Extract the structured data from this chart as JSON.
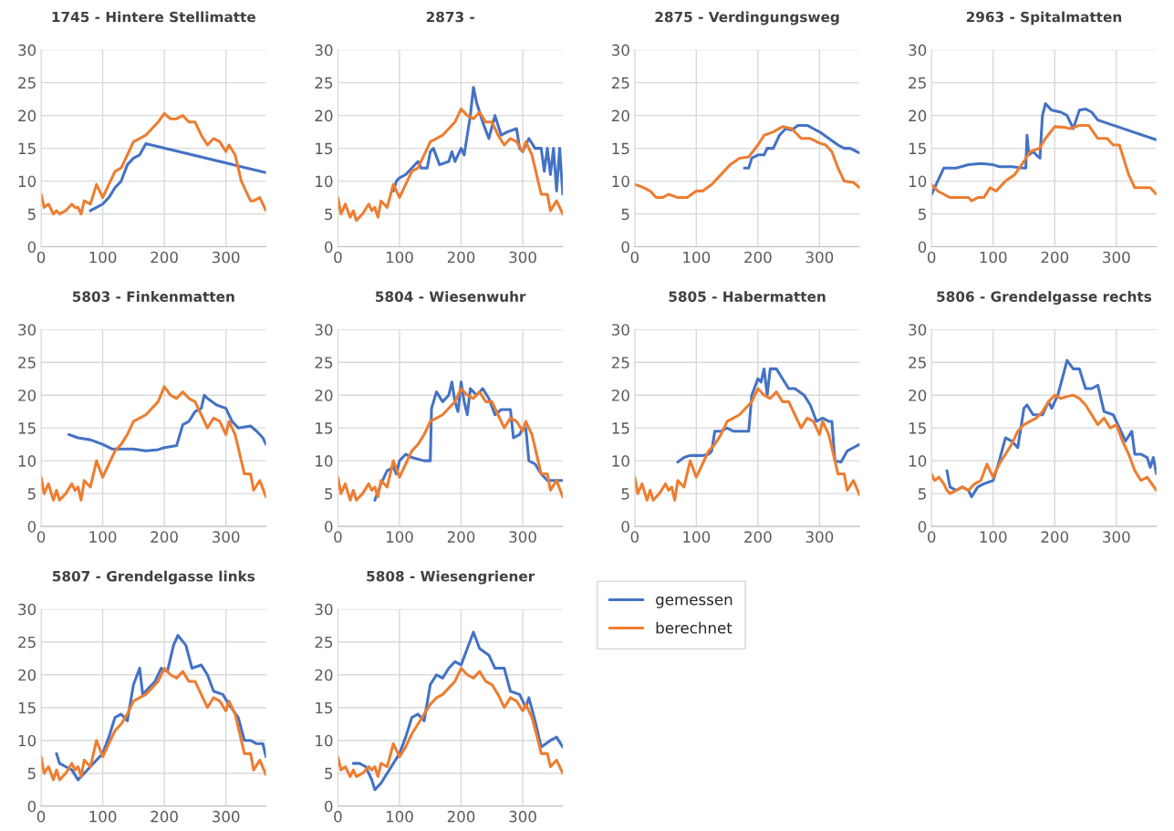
{
  "chart_data": [
    {
      "type": "line",
      "title": "1745 - Hintere Stellimatte",
      "xlim": [
        0,
        365
      ],
      "ylim": [
        0,
        30
      ],
      "xticks": [
        0,
        100,
        200,
        300
      ],
      "yticks": [
        0,
        5,
        10,
        15,
        20,
        25,
        30
      ],
      "grid": true,
      "series": [
        {
          "color": "#4472c4",
          "x": [
            80,
            90,
            100,
            110,
            120,
            130,
            140,
            150,
            160,
            170,
            365
          ],
          "values": [
            5.5,
            6,
            6.5,
            7.5,
            9,
            10,
            12.5,
            13.5,
            14,
            15.7,
            11.3
          ]
        },
        {
          "color": "#ed7d31",
          "x": [
            0,
            5,
            12,
            20,
            25,
            30,
            40,
            50,
            55,
            60,
            65,
            70,
            80,
            90,
            100,
            110,
            120,
            130,
            140,
            150,
            160,
            170,
            180,
            190,
            200,
            210,
            220,
            230,
            240,
            250,
            260,
            270,
            280,
            290,
            300,
            305,
            315,
            325,
            330,
            340,
            345,
            355,
            365
          ],
          "values": [
            8,
            6,
            6.5,
            5,
            5.5,
            5,
            5.5,
            6.5,
            6,
            6,
            5,
            7,
            6.5,
            9.5,
            7.5,
            9.5,
            11.5,
            12,
            14,
            16,
            16.5,
            17,
            18,
            19,
            20.3,
            19.5,
            19.5,
            20,
            19,
            19,
            17,
            15.5,
            16.5,
            16,
            14.5,
            15.5,
            14,
            10,
            9,
            7,
            7,
            7.5,
            5.5
          ]
        }
      ]
    },
    {
      "type": "line",
      "title": "2873 -",
      "xlim": [
        0,
        365
      ],
      "ylim": [
        0,
        30
      ],
      "xticks": [
        0,
        100,
        200,
        300
      ],
      "yticks": [
        0,
        5,
        10,
        15,
        20,
        25,
        30
      ],
      "grid": true,
      "series": [
        {
          "color": "#4472c4",
          "x": [
            90,
            95,
            100,
            110,
            120,
            130,
            135,
            145,
            150,
            155,
            165,
            180,
            185,
            190,
            200,
            205,
            210,
            215,
            220,
            225,
            235,
            245,
            255,
            265,
            275,
            290,
            295,
            300,
            310,
            320,
            330,
            335,
            340,
            345,
            350,
            355,
            360,
            365
          ],
          "values": [
            8.5,
            10,
            10.5,
            11,
            12,
            13,
            12,
            12,
            14.5,
            15,
            12.5,
            13,
            14.5,
            13,
            15,
            14,
            17,
            20,
            24.3,
            22,
            19,
            16.5,
            20,
            17,
            17.5,
            18,
            15,
            14.5,
            16.5,
            15,
            15,
            11.5,
            15,
            11,
            15,
            8.5,
            15,
            8
          ]
        },
        {
          "color": "#ed7d31",
          "x": [
            0,
            5,
            12,
            20,
            25,
            30,
            40,
            50,
            55,
            60,
            65,
            70,
            80,
            90,
            100,
            110,
            120,
            130,
            140,
            150,
            160,
            170,
            180,
            190,
            200,
            210,
            220,
            230,
            240,
            250,
            260,
            270,
            280,
            290,
            300,
            305,
            315,
            325,
            330,
            340,
            345,
            355,
            365
          ],
          "values": [
            7.5,
            5,
            6.5,
            4.5,
            5.5,
            4,
            5,
            6.5,
            5.5,
            6,
            4.5,
            7,
            6,
            9.5,
            7.5,
            9.5,
            11.5,
            12,
            14,
            16,
            16.5,
            17,
            18,
            19,
            21,
            20,
            19.5,
            20.5,
            19,
            19,
            17,
            15.5,
            16.5,
            16,
            14.5,
            16,
            14,
            10,
            8,
            8,
            5.5,
            7,
            5
          ]
        }
      ]
    },
    {
      "type": "line",
      "title": "2875 - Verdingungsweg",
      "xlim": [
        0,
        365
      ],
      "ylim": [
        0,
        30
      ],
      "xticks": [
        0,
        100,
        200,
        300
      ],
      "yticks": [
        0,
        5,
        10,
        15,
        20,
        25,
        30
      ],
      "grid": true,
      "series": [
        {
          "color": "#4472c4",
          "x": [
            178,
            185,
            190,
            200,
            210,
            215,
            225,
            235,
            245,
            255,
            265,
            280,
            290,
            300,
            315,
            330,
            340,
            350,
            360,
            365
          ],
          "values": [
            12,
            12,
            13.5,
            14,
            14,
            15,
            15,
            17,
            18,
            17.8,
            18.5,
            18.5,
            18,
            17.5,
            16.5,
            15.5,
            15,
            15,
            14.5,
            14.3
          ]
        },
        {
          "color": "#ed7d31",
          "x": [
            0,
            15,
            25,
            35,
            45,
            55,
            70,
            85,
            100,
            110,
            125,
            140,
            155,
            170,
            185,
            200,
            210,
            225,
            240,
            255,
            270,
            285,
            300,
            310,
            320,
            330,
            340,
            355,
            365
          ],
          "values": [
            9.5,
            9,
            8.5,
            7.5,
            7.5,
            8,
            7.5,
            7.5,
            8.5,
            8.5,
            9.5,
            11,
            12.5,
            13.5,
            13.7,
            15.5,
            17,
            17.5,
            18.3,
            18,
            16.5,
            16.5,
            15.8,
            15.5,
            14.5,
            12,
            10,
            9.8,
            9
          ]
        }
      ]
    },
    {
      "type": "line",
      "title": "2963 - Spitalmatten",
      "xlim": [
        0,
        365
      ],
      "ylim": [
        0,
        30
      ],
      "xticks": [
        0,
        100,
        200,
        300
      ],
      "yticks": [
        0,
        5,
        10,
        15,
        20,
        25,
        30
      ],
      "grid": true,
      "series": [
        {
          "color": "#4472c4",
          "x": [
            0,
            10,
            20,
            40,
            60,
            80,
            100,
            110,
            130,
            150,
            153,
            155,
            158,
            165,
            170,
            176,
            180,
            185,
            195,
            210,
            220,
            230,
            240,
            250,
            260,
            270,
            365
          ],
          "values": [
            8,
            10,
            12,
            12,
            12.5,
            12.7,
            12.5,
            12.2,
            12.2,
            12,
            12,
            17,
            14,
            14.5,
            14,
            13.5,
            20,
            21.8,
            20.8,
            20.5,
            20,
            18,
            20.8,
            21,
            20.5,
            19.3,
            16.3
          ]
        },
        {
          "color": "#ed7d31",
          "x": [
            0,
            10,
            20,
            30,
            45,
            60,
            65,
            75,
            85,
            95,
            105,
            120,
            135,
            150,
            160,
            175,
            185,
            200,
            215,
            225,
            240,
            255,
            270,
            285,
            295,
            305,
            320,
            330,
            345,
            355,
            365
          ],
          "values": [
            9.5,
            8.5,
            8,
            7.5,
            7.5,
            7.5,
            7,
            7.5,
            7.5,
            9,
            8.5,
            10,
            11,
            13,
            14.5,
            15,
            16.5,
            18.3,
            18.2,
            18,
            18.5,
            18.5,
            16.5,
            16.5,
            15.5,
            15.5,
            11,
            9,
            9,
            9,
            8
          ]
        }
      ]
    },
    {
      "type": "line",
      "title": "5803 - Finkenmatten",
      "xlim": [
        0,
        365
      ],
      "ylim": [
        0,
        30
      ],
      "xticks": [
        0,
        100,
        200,
        300
      ],
      "yticks": [
        0,
        5,
        10,
        15,
        20,
        25,
        30
      ],
      "grid": true,
      "series": [
        {
          "color": "#4472c4",
          "x": [
            45,
            60,
            80,
            100,
            115,
            130,
            150,
            170,
            190,
            200,
            220,
            230,
            240,
            250,
            260,
            265,
            270,
            285,
            300,
            310,
            320,
            340,
            350,
            360,
            365
          ],
          "values": [
            14,
            13.5,
            13.2,
            12.5,
            11.8,
            11.8,
            11.8,
            11.5,
            11.7,
            12,
            12.3,
            15.5,
            16,
            17.5,
            18,
            20,
            19.5,
            18.5,
            18,
            16,
            15,
            15.3,
            14.5,
            13.5,
            12.5
          ]
        },
        {
          "color": "#ed7d31",
          "x": [
            0,
            5,
            12,
            20,
            25,
            30,
            40,
            50,
            55,
            60,
            65,
            70,
            80,
            90,
            100,
            110,
            120,
            130,
            140,
            150,
            160,
            170,
            180,
            190,
            200,
            210,
            220,
            230,
            240,
            250,
            260,
            270,
            280,
            290,
            300,
            305,
            315,
            325,
            330,
            340,
            345,
            355,
            365
          ],
          "values": [
            7.5,
            5,
            6.5,
            4,
            5.5,
            4,
            5,
            6.5,
            5.5,
            6,
            4,
            7,
            6,
            10,
            7.5,
            9.5,
            11.5,
            12.5,
            14,
            16,
            16.5,
            17,
            18,
            19,
            21.3,
            20,
            19.5,
            20.5,
            19.5,
            19,
            17,
            15,
            16.5,
            16,
            14,
            16,
            14,
            10,
            8,
            8,
            5.5,
            7,
            4.5
          ]
        }
      ]
    },
    {
      "type": "line",
      "title": "5804 - Wiesenwuhr",
      "xlim": [
        0,
        365
      ],
      "ylim": [
        0,
        30
      ],
      "xticks": [
        0,
        100,
        200,
        300
      ],
      "yticks": [
        0,
        5,
        10,
        15,
        20,
        25,
        30
      ],
      "grid": true,
      "series": [
        {
          "color": "#4472c4",
          "x": [
            60,
            70,
            80,
            90,
            95,
            100,
            110,
            120,
            140,
            150,
            152,
            160,
            170,
            180,
            185,
            190,
            195,
            200,
            205,
            210,
            215,
            225,
            235,
            245,
            255,
            265,
            280,
            285,
            295,
            300,
            305,
            310,
            320,
            330,
            340,
            350,
            365
          ],
          "values": [
            4,
            6.5,
            8.5,
            9,
            8,
            10,
            11,
            10.5,
            10,
            10,
            18,
            20.5,
            19,
            20,
            22,
            19,
            17.5,
            22,
            19,
            17,
            21,
            20,
            21,
            19.5,
            17,
            17.8,
            17.8,
            13.5,
            14,
            15,
            15,
            10,
            9.5,
            8,
            7,
            7,
            7
          ]
        },
        {
          "color": "#ed7d31",
          "x": [
            0,
            5,
            12,
            20,
            25,
            30,
            40,
            50,
            55,
            60,
            65,
            70,
            80,
            90,
            100,
            110,
            120,
            130,
            140,
            150,
            160,
            170,
            180,
            190,
            200,
            210,
            220,
            230,
            240,
            250,
            260,
            270,
            280,
            290,
            300,
            305,
            315,
            325,
            330,
            340,
            345,
            355,
            365
          ],
          "values": [
            7.5,
            5,
            6.5,
            4,
            5.5,
            4,
            5,
            6.5,
            5.5,
            6,
            4.5,
            7,
            6,
            10,
            7.5,
            9.5,
            11.5,
            12.5,
            14,
            16,
            16.5,
            17,
            18,
            19,
            21,
            20,
            19.5,
            20.5,
            19,
            19,
            17,
            15,
            16.5,
            16,
            14.5,
            16,
            14,
            10,
            8,
            8,
            5.5,
            7,
            4.5
          ]
        }
      ]
    },
    {
      "type": "line",
      "title": "5805 - Habermatten",
      "xlim": [
        0,
        365
      ],
      "ylim": [
        0,
        30
      ],
      "xticks": [
        0,
        100,
        200,
        300
      ],
      "yticks": [
        0,
        5,
        10,
        15,
        20,
        25,
        30
      ],
      "grid": true,
      "series": [
        {
          "color": "#4472c4",
          "x": [
            70,
            80,
            90,
            110,
            120,
            125,
            130,
            140,
            150,
            160,
            175,
            185,
            190,
            200,
            205,
            210,
            215,
            220,
            230,
            240,
            250,
            260,
            275,
            285,
            295,
            305,
            315,
            320,
            325,
            335,
            345,
            355,
            365
          ],
          "values": [
            9.8,
            10.5,
            10.8,
            10.8,
            11,
            11.5,
            14.5,
            14.5,
            15,
            14.5,
            14.5,
            14.5,
            20,
            22.5,
            22,
            24,
            20,
            24,
            24,
            22.5,
            21,
            21,
            20,
            18.5,
            16,
            16.5,
            16,
            16,
            10,
            9.8,
            11.5,
            12,
            12.5
          ]
        },
        {
          "color": "#ed7d31",
          "x": [
            0,
            5,
            12,
            20,
            25,
            30,
            40,
            50,
            55,
            60,
            65,
            70,
            80,
            90,
            100,
            110,
            120,
            130,
            140,
            150,
            160,
            170,
            180,
            190,
            200,
            210,
            220,
            230,
            240,
            250,
            260,
            270,
            280,
            290,
            300,
            305,
            315,
            325,
            330,
            340,
            345,
            355,
            365
          ],
          "values": [
            7.5,
            5,
            6.5,
            4,
            5.5,
            4,
            5,
            6.5,
            5.5,
            6,
            4,
            7,
            6,
            10,
            7.5,
            9.5,
            11.5,
            12.5,
            14,
            16,
            16.5,
            17,
            18,
            19,
            21,
            20,
            19.5,
            20.5,
            19,
            19,
            17,
            15,
            16.5,
            16,
            14,
            16,
            14,
            10,
            8,
            8,
            5.5,
            7,
            4.8
          ]
        }
      ]
    },
    {
      "type": "line",
      "title": "5806 - Grendelgasse rechts",
      "xlim": [
        0,
        365
      ],
      "ylim": [
        0,
        30
      ],
      "xticks": [
        0,
        100,
        200,
        300
      ],
      "yticks": [
        0,
        5,
        10,
        15,
        20,
        25,
        30
      ],
      "grid": true,
      "series": [
        {
          "color": "#4472c4",
          "x": [
            25,
            30,
            40,
            50,
            60,
            65,
            75,
            85,
            100,
            110,
            120,
            130,
            140,
            150,
            155,
            165,
            180,
            190,
            195,
            205,
            215,
            220,
            230,
            240,
            250,
            260,
            270,
            280,
            295,
            305,
            315,
            325,
            330,
            340,
            350,
            355,
            360,
            365
          ],
          "values": [
            8.5,
            6,
            5.5,
            6,
            5.5,
            4.5,
            6,
            6.5,
            7,
            10,
            13.5,
            13,
            12,
            18,
            18.5,
            17,
            17,
            19,
            18,
            20,
            23.5,
            25.3,
            24,
            24,
            21,
            21,
            21.5,
            17.5,
            17,
            15,
            13,
            14.5,
            11,
            11,
            10.5,
            9,
            10.5,
            8
          ]
        },
        {
          "color": "#ed7d31",
          "x": [
            0,
            5,
            12,
            20,
            25,
            30,
            40,
            50,
            60,
            70,
            80,
            90,
            100,
            110,
            120,
            130,
            140,
            150,
            160,
            170,
            180,
            190,
            200,
            210,
            220,
            230,
            240,
            250,
            260,
            270,
            280,
            290,
            300,
            310,
            320,
            330,
            340,
            350,
            365
          ],
          "values": [
            8,
            7,
            7.5,
            6.5,
            5.5,
            5,
            5.5,
            6,
            5.5,
            6.5,
            7,
            9.5,
            7.5,
            9.5,
            11,
            12.5,
            14.5,
            15.5,
            16,
            16.5,
            17.5,
            19,
            20,
            19.5,
            19.8,
            20,
            19.5,
            18.5,
            17,
            15.5,
            16.5,
            15,
            15.5,
            13,
            11,
            8.5,
            7,
            7.5,
            5.5
          ]
        }
      ]
    },
    {
      "type": "line",
      "title": "5807 - Grendelgasse links",
      "xlim": [
        0,
        365
      ],
      "ylim": [
        0,
        30
      ],
      "xticks": [
        0,
        100,
        200,
        300
      ],
      "yticks": [
        0,
        5,
        10,
        15,
        20,
        25,
        30
      ],
      "grid": true,
      "series": [
        {
          "color": "#4472c4",
          "x": [
            25,
            30,
            40,
            50,
            60,
            70,
            80,
            90,
            100,
            110,
            120,
            130,
            140,
            150,
            160,
            165,
            175,
            185,
            195,
            205,
            215,
            222,
            235,
            245,
            260,
            270,
            280,
            295,
            305,
            320,
            330,
            340,
            350,
            360,
            365
          ],
          "values": [
            8,
            6.5,
            6,
            5.5,
            4,
            5,
            6,
            7,
            8,
            10.5,
            13.5,
            14,
            13,
            18.5,
            21,
            17,
            18,
            19,
            21,
            20.5,
            24.5,
            26,
            24.5,
            21,
            21.5,
            20,
            17.5,
            17,
            15.5,
            13.5,
            10,
            10,
            9.5,
            9.5,
            7.5
          ]
        },
        {
          "color": "#ed7d31",
          "x": [
            0,
            5,
            12,
            20,
            25,
            30,
            40,
            50,
            55,
            60,
            65,
            70,
            80,
            90,
            100,
            110,
            120,
            130,
            140,
            150,
            160,
            170,
            180,
            190,
            200,
            210,
            220,
            230,
            240,
            250,
            260,
            270,
            280,
            290,
            300,
            305,
            315,
            325,
            330,
            340,
            345,
            355,
            365
          ],
          "values": [
            7.5,
            5,
            6,
            4,
            5.5,
            4,
            5,
            6.5,
            5.5,
            6,
            4.5,
            7,
            6,
            10,
            7.5,
            9.5,
            11.5,
            12.5,
            14,
            16,
            16.5,
            17,
            18,
            19,
            21,
            20,
            19.5,
            20.5,
            19,
            19,
            17,
            15,
            16.5,
            16,
            14.5,
            16,
            14,
            10,
            8,
            8,
            5.5,
            7,
            4.8
          ]
        }
      ]
    },
    {
      "type": "line",
      "title": "5808 - Wiesengriener",
      "xlim": [
        0,
        365
      ],
      "ylim": [
        0,
        30
      ],
      "xticks": [
        0,
        100,
        200,
        300
      ],
      "yticks": [
        0,
        5,
        10,
        15,
        20,
        25,
        30
      ],
      "grid": true,
      "legend": "right",
      "series": [
        {
          "name": "gemessen",
          "color": "#4472c4",
          "x": [
            25,
            35,
            45,
            55,
            60,
            70,
            80,
            90,
            100,
            110,
            120,
            130,
            140,
            150,
            160,
            170,
            180,
            190,
            200,
            210,
            220,
            230,
            245,
            255,
            270,
            280,
            295,
            305,
            310,
            320,
            330,
            345,
            355,
            365
          ],
          "values": [
            6.5,
            6.5,
            6,
            4,
            2.5,
            3.5,
            5,
            6.5,
            8,
            10.5,
            13.5,
            14,
            13,
            18.5,
            20,
            19.5,
            21,
            22,
            21.5,
            24,
            26.5,
            24,
            23,
            21,
            21,
            17.5,
            17,
            15,
            16.5,
            13,
            9,
            10,
            10.5,
            9
          ]
        },
        {
          "name": "berechnet",
          "color": "#ed7d31",
          "x": [
            0,
            5,
            12,
            20,
            25,
            30,
            40,
            50,
            55,
            60,
            65,
            70,
            80,
            90,
            100,
            110,
            120,
            130,
            140,
            150,
            160,
            170,
            180,
            190,
            200,
            210,
            220,
            230,
            240,
            250,
            260,
            270,
            280,
            290,
            300,
            305,
            315,
            325,
            330,
            340,
            345,
            355,
            365
          ],
          "values": [
            7.5,
            5.5,
            6,
            4.5,
            5.5,
            4.5,
            5,
            6,
            5.5,
            6,
            4.5,
            6.5,
            6,
            9.5,
            7.5,
            9,
            11,
            12.5,
            14,
            15.5,
            16.5,
            17,
            18,
            19,
            21,
            20,
            19.5,
            20.5,
            19,
            18.5,
            17,
            15,
            16.5,
            16,
            14.5,
            15.5,
            13.5,
            10,
            8,
            8,
            6,
            7,
            5
          ]
        }
      ]
    }
  ]
}
